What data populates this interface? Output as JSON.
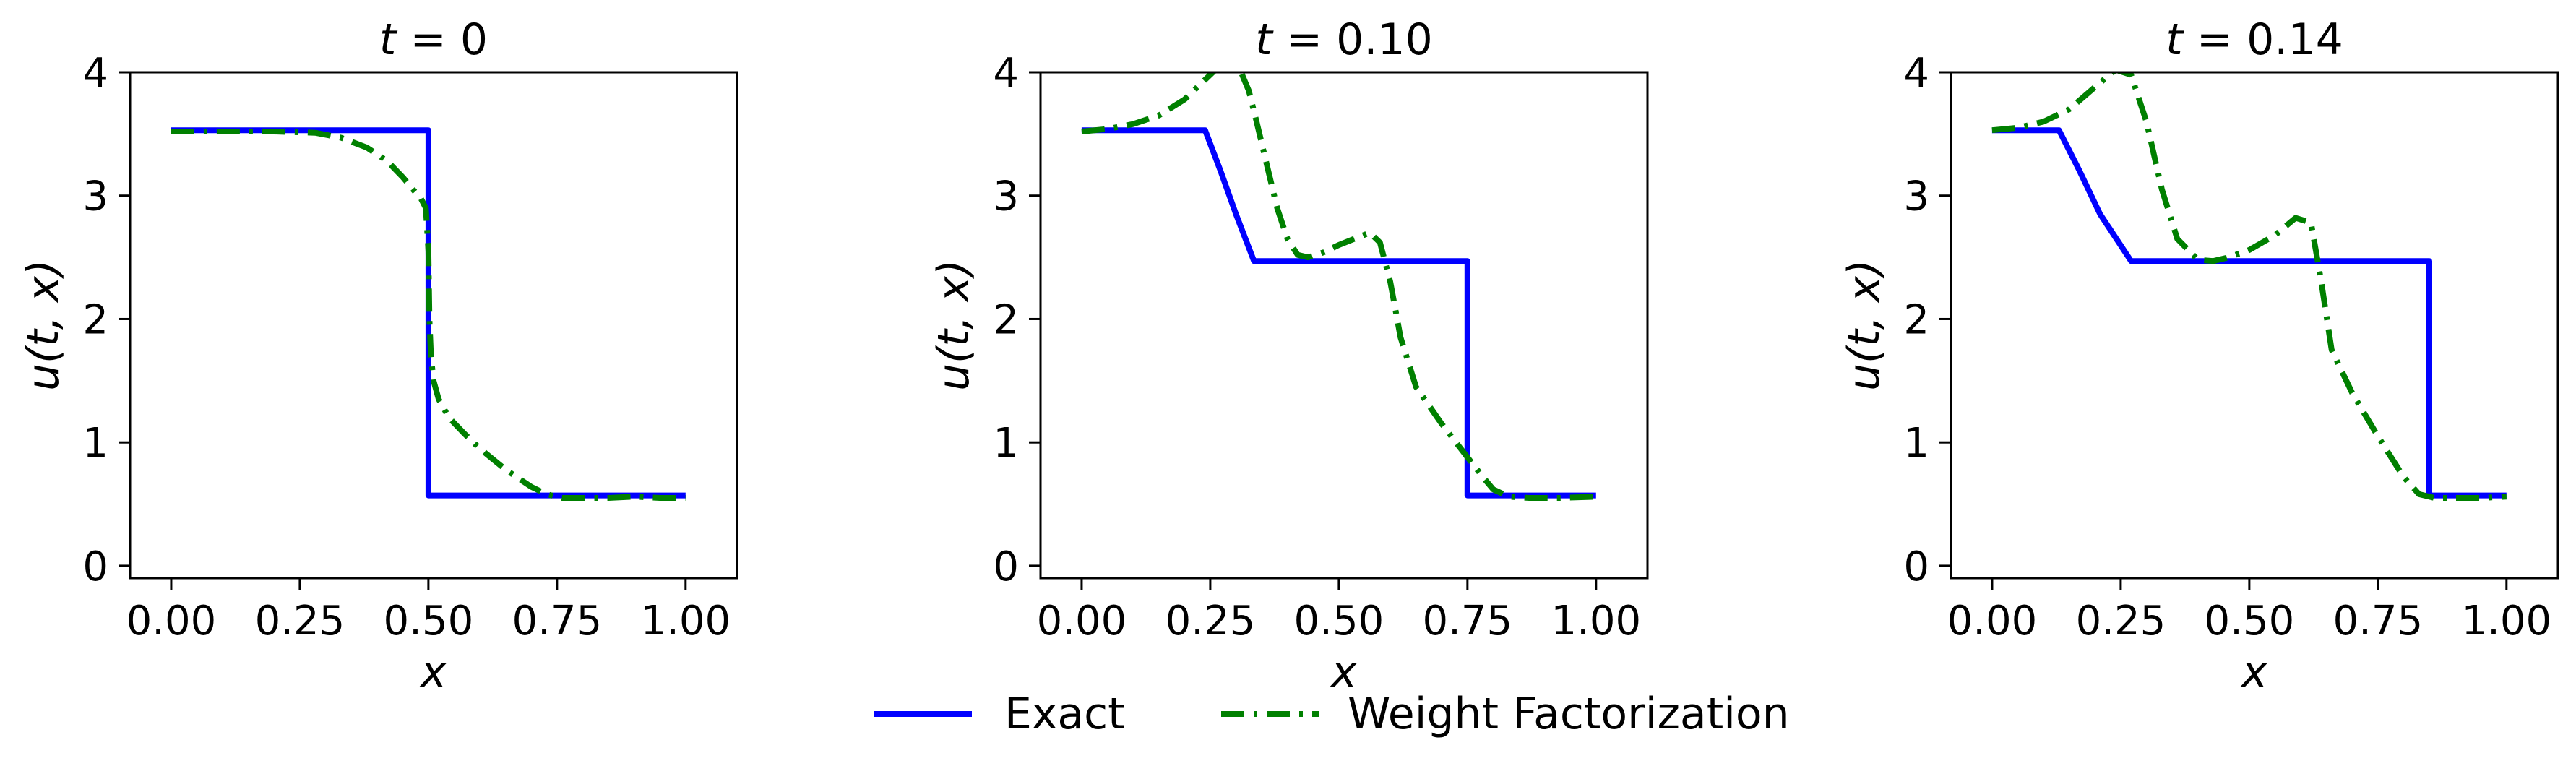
{
  "chart_data": {
    "type": "line",
    "legend": {
      "placement": "bottom-center",
      "entries": [
        {
          "name": "Exact",
          "color": "#0000ff",
          "style": "solid"
        },
        {
          "name": "Weight Factorization",
          "color": "#008000",
          "style": "dashdot"
        }
      ]
    },
    "panels": [
      {
        "title_var": "t",
        "title_value": "0",
        "xlabel": "x",
        "ylabel": "u(t, x)",
        "xlim": [
          -0.08,
          1.1
        ],
        "ylim": [
          -0.1,
          4
        ],
        "xticks": [
          0,
          0.25,
          0.5,
          0.75,
          1.0
        ],
        "xtick_labels": [
          "0.00",
          "0.25",
          "0.50",
          "0.75",
          "1.00"
        ],
        "yticks": [
          0,
          1,
          2,
          3,
          4
        ],
        "ytick_labels": [
          "0",
          "1",
          "2",
          "3",
          "4"
        ],
        "series": [
          {
            "name": "Exact",
            "x": [
              0,
              0.5,
              0.5,
              1.0
            ],
            "y": [
              3.53,
              3.53,
              0.57,
              0.57
            ]
          },
          {
            "name": "Weight Factorization",
            "x": [
              0,
              0.1,
              0.2,
              0.28,
              0.33,
              0.38,
              0.42,
              0.45,
              0.47,
              0.485,
              0.495,
              0.5,
              0.502,
              0.505,
              0.51,
              0.52,
              0.54,
              0.57,
              0.6,
              0.65,
              0.7,
              0.73,
              0.76,
              0.8,
              0.85,
              0.9,
              0.95,
              1.0
            ],
            "y": [
              3.52,
              3.52,
              3.52,
              3.51,
              3.47,
              3.39,
              3.28,
              3.15,
              3.05,
              2.98,
              2.9,
              2.55,
              2.0,
              1.7,
              1.5,
              1.35,
              1.2,
              1.07,
              0.95,
              0.78,
              0.64,
              0.58,
              0.55,
              0.55,
              0.55,
              0.56,
              0.55,
              0.55
            ]
          }
        ]
      },
      {
        "title_var": "t",
        "title_value": "0.10",
        "xlabel": "x",
        "ylabel": "u(t, x)",
        "xlim": [
          -0.08,
          1.1
        ],
        "ylim": [
          -0.1,
          4
        ],
        "xticks": [
          0,
          0.25,
          0.5,
          0.75,
          1.0
        ],
        "xtick_labels": [
          "0.00",
          "0.25",
          "0.50",
          "0.75",
          "1.00"
        ],
        "yticks": [
          0,
          1,
          2,
          3,
          4
        ],
        "ytick_labels": [
          "0",
          "1",
          "2",
          "3",
          "4"
        ],
        "series": [
          {
            "name": "Exact",
            "x": [
              0,
              0.24,
              0.27,
              0.3,
              0.335,
              0.75,
              0.75,
              1.0
            ],
            "y": [
              3.53,
              3.53,
              3.2,
              2.85,
              2.47,
              2.47,
              0.57,
              0.57
            ]
          },
          {
            "name": "Weight Factorization",
            "x": [
              0,
              0.05,
              0.1,
              0.15,
              0.2,
              0.23,
              0.26,
              0.29,
              0.31,
              0.325,
              0.34,
              0.36,
              0.38,
              0.4,
              0.42,
              0.44,
              0.47,
              0.5,
              0.53,
              0.56,
              0.58,
              0.6,
              0.62,
              0.65,
              0.7,
              0.75,
              0.78,
              0.8,
              0.83,
              0.87,
              0.93,
              1.0
            ],
            "y": [
              3.52,
              3.54,
              3.58,
              3.65,
              3.78,
              3.9,
              4.02,
              4.05,
              4.0,
              3.85,
              3.6,
              3.25,
              2.9,
              2.65,
              2.52,
              2.5,
              2.54,
              2.6,
              2.65,
              2.7,
              2.62,
              2.3,
              1.85,
              1.45,
              1.15,
              0.88,
              0.72,
              0.62,
              0.56,
              0.55,
              0.55,
              0.56
            ]
          }
        ]
      },
      {
        "title_var": "t",
        "title_value": "0.14",
        "xlabel": "x",
        "ylabel": "u(t, x)",
        "xlim": [
          -0.08,
          1.1
        ],
        "ylim": [
          -0.1,
          4
        ],
        "xticks": [
          0,
          0.25,
          0.5,
          0.75,
          1.0
        ],
        "xtick_labels": [
          "0.00",
          "0.25",
          "0.50",
          "0.75",
          "1.00"
        ],
        "yticks": [
          0,
          1,
          2,
          3,
          4
        ],
        "ytick_labels": [
          "0",
          "1",
          "2",
          "3",
          "4"
        ],
        "series": [
          {
            "name": "Exact",
            "x": [
              0,
              0.13,
              0.17,
              0.21,
              0.27,
              0.85,
              0.85,
              1.0
            ],
            "y": [
              3.53,
              3.53,
              3.2,
              2.85,
              2.47,
              2.47,
              0.57,
              0.57
            ]
          },
          {
            "name": "Weight Factorization",
            "x": [
              0,
              0.05,
              0.1,
              0.15,
              0.2,
              0.24,
              0.27,
              0.3,
              0.33,
              0.36,
              0.4,
              0.43,
              0.46,
              0.5,
              0.55,
              0.59,
              0.62,
              0.64,
              0.66,
              0.7,
              0.75,
              0.8,
              0.83,
              0.86,
              0.9,
              0.95,
              1.0
            ],
            "y": [
              3.53,
              3.55,
              3.6,
              3.7,
              3.88,
              4.02,
              3.98,
              3.6,
              3.05,
              2.65,
              2.48,
              2.47,
              2.5,
              2.56,
              2.68,
              2.82,
              2.78,
              2.3,
              1.75,
              1.4,
              1.05,
              0.72,
              0.58,
              0.55,
              0.55,
              0.55,
              0.56
            ]
          }
        ]
      }
    ]
  }
}
